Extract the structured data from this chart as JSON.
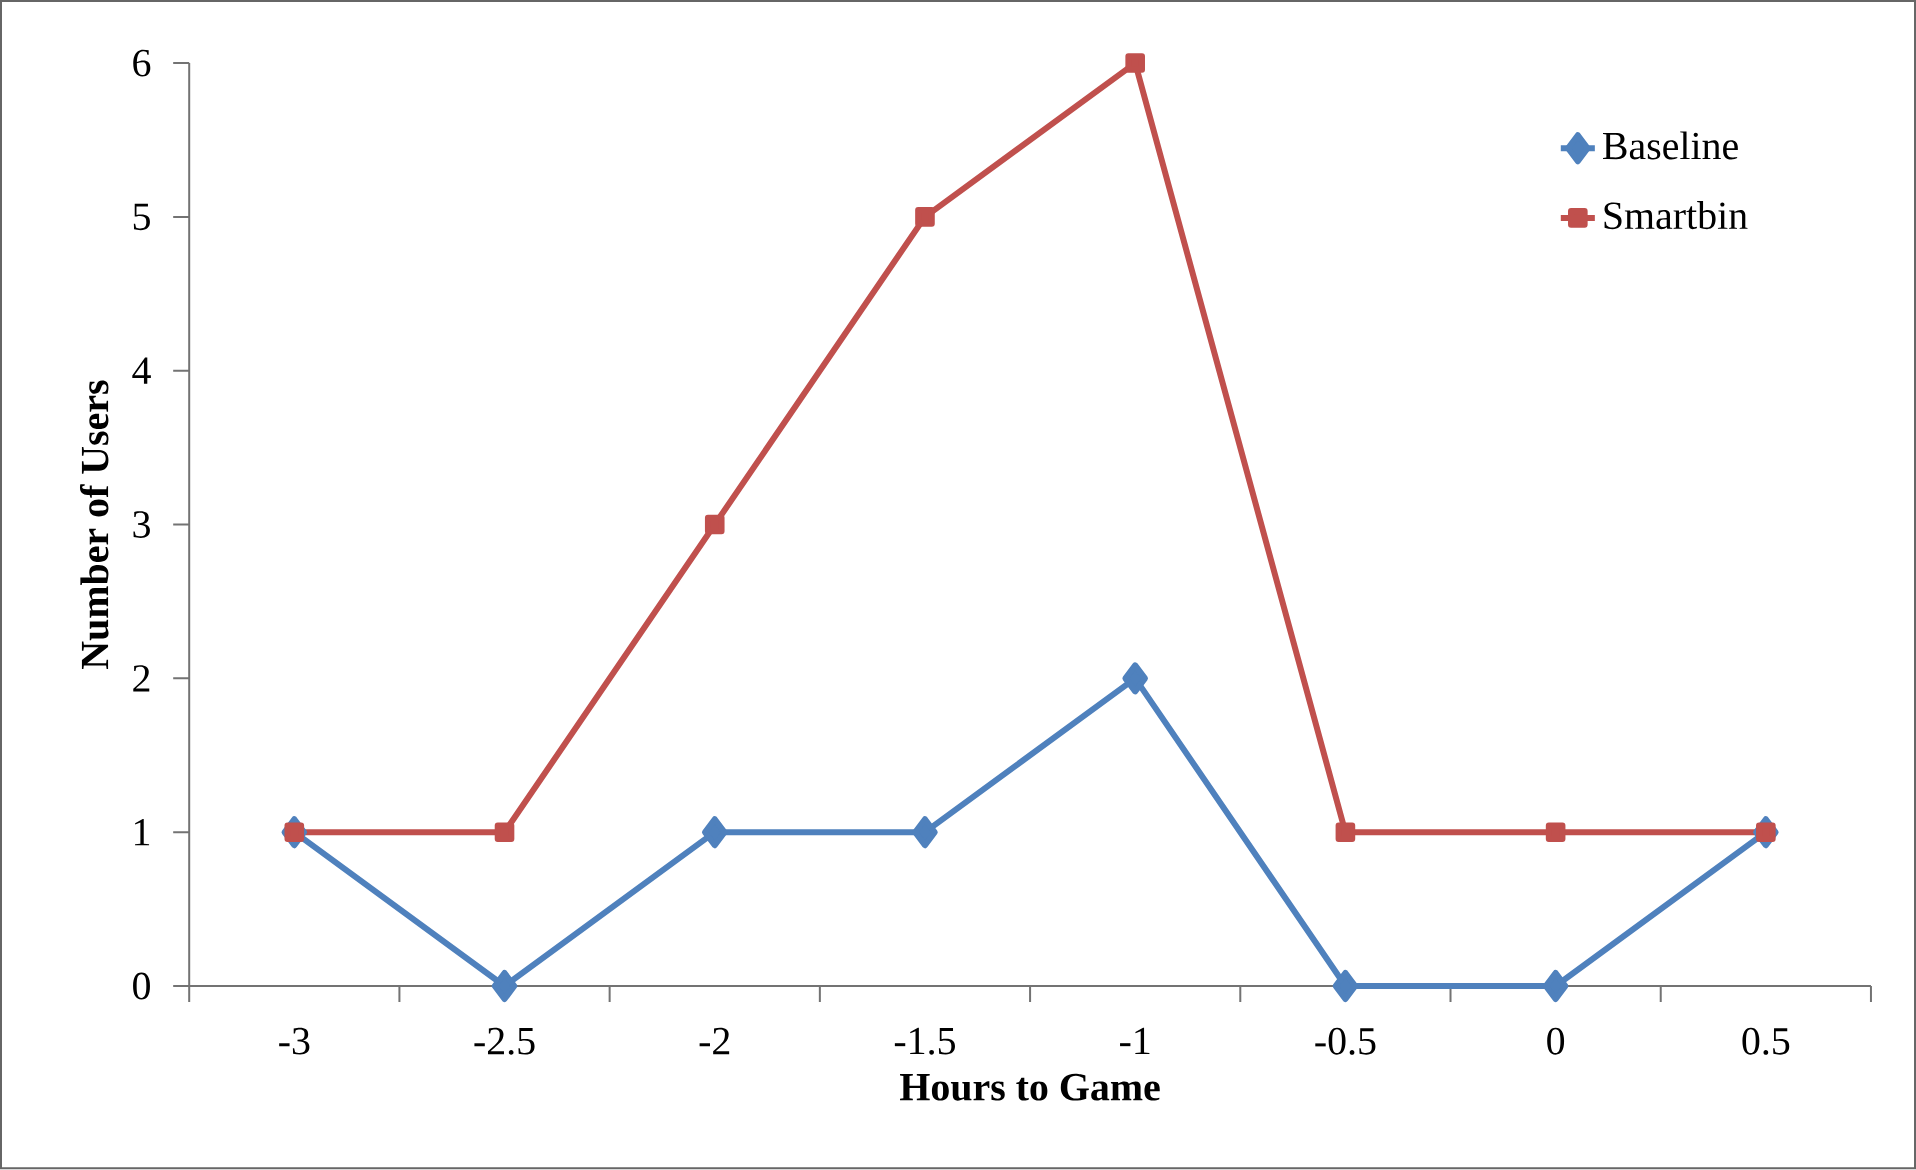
{
  "chart_data": {
    "type": "line",
    "xlabel": "Hours to Game",
    "ylabel": "Number of Users",
    "categories": [
      "-3",
      "-2.5",
      "-2",
      "-1.5",
      "-1",
      "-0.5",
      "0",
      "0.5"
    ],
    "series": [
      {
        "name": "Baseline",
        "color": "#4f81bd",
        "marker": "diamond",
        "values": [
          1,
          0,
          1,
          1,
          2,
          0,
          0,
          1
        ]
      },
      {
        "name": "Smartbin",
        "color": "#c0504d",
        "marker": "square",
        "values": [
          1,
          1,
          3,
          5,
          6,
          1,
          1,
          1
        ]
      }
    ],
    "ylim": [
      0,
      6
    ],
    "yticks": [
      0,
      1,
      2,
      3,
      4,
      5,
      6
    ],
    "grid": false,
    "legend": "top right",
    "line_style": "solid"
  }
}
